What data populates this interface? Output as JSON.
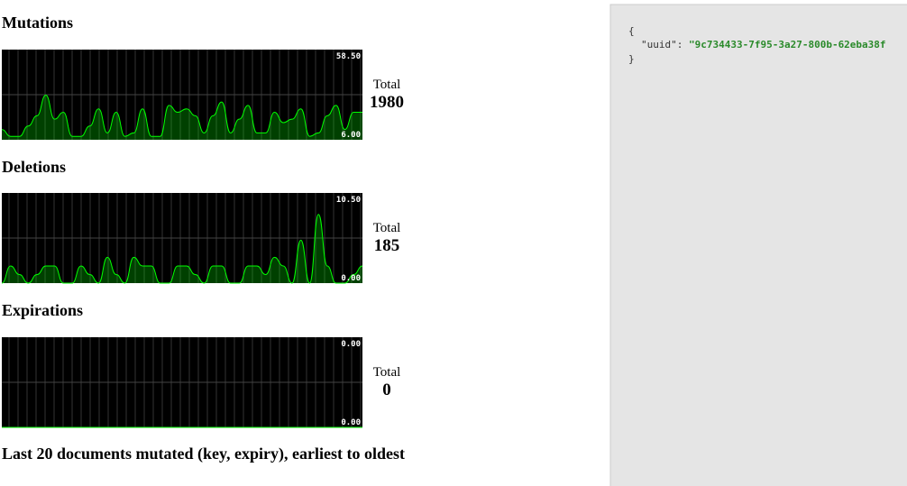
{
  "panels": [
    {
      "title": "Mutations",
      "total_label": "Total",
      "total": 1980,
      "ylim": [
        {
          "value": 6,
          "label": "6.00"
        },
        {
          "value": 58.5,
          "label": "58.50"
        }
      ],
      "values": [
        12,
        8,
        8,
        14,
        20,
        32,
        18,
        22,
        8,
        8,
        14,
        24,
        10,
        22,
        8,
        10,
        24,
        8,
        8,
        26,
        22,
        24,
        20,
        10,
        20,
        28,
        10,
        18,
        26,
        10,
        10,
        22,
        16,
        18,
        24,
        8,
        10,
        20,
        26,
        12,
        22,
        22
      ]
    },
    {
      "title": "Deletions",
      "total_label": "Total",
      "total": 185,
      "ylim": [
        {
          "value": 0,
          "label": "0.00"
        },
        {
          "value": 10.5,
          "label": "10.50"
        }
      ],
      "values": [
        0,
        2,
        1,
        0,
        1,
        2,
        2,
        0,
        0,
        2,
        1,
        0,
        3,
        1,
        0,
        3,
        2,
        2,
        0,
        0,
        2,
        2,
        1,
        0,
        2,
        2,
        0,
        0,
        2,
        2,
        1,
        3,
        2,
        0,
        5,
        0,
        8,
        2,
        0,
        0,
        1,
        2
      ]
    },
    {
      "title": "Expirations",
      "total_label": "Total",
      "total": 0,
      "ylim": [
        {
          "value": 0,
          "label": "0.00"
        },
        {
          "value": 0,
          "label": "0.00"
        }
      ],
      "values": [
        0,
        0,
        0,
        0,
        0,
        0,
        0,
        0,
        0,
        0,
        0,
        0,
        0,
        0,
        0,
        0,
        0,
        0,
        0,
        0,
        0,
        0,
        0,
        0,
        0,
        0,
        0,
        0,
        0,
        0,
        0,
        0,
        0,
        0,
        0,
        0,
        0,
        0,
        0,
        0,
        0,
        0
      ]
    }
  ],
  "documents_heading": "Last 20 documents mutated (key, expiry), earliest to oldest",
  "json_view": {
    "open": "{",
    "key": "\"uuid\"",
    "separator": ":",
    "value": "\"9c734433-7f95-3a27-800b-62eba38f",
    "close": "}"
  }
}
